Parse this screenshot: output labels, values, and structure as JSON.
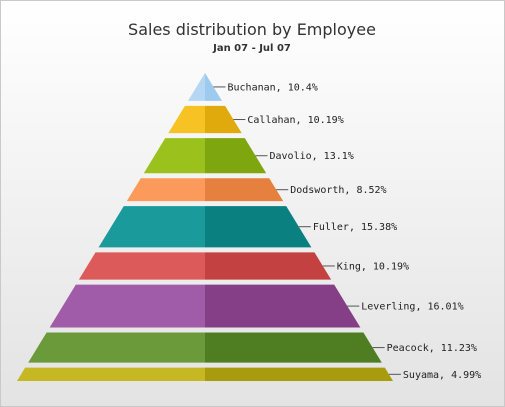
{
  "chart_data": {
    "type": "pyramid",
    "title": "Sales distribution by Employee",
    "subtitle": "Jan 07 - Jul 07",
    "label_separator": ",  ",
    "series": [
      {
        "name": "Buchanan",
        "label": "Buchanan",
        "value": 10.4,
        "value_label": "10.4%",
        "color_left": "#b5d7f3",
        "color_right": "#9ccbef"
      },
      {
        "name": "Callahan",
        "label": "Callahan",
        "value": 10.19,
        "value_label": "10.19%",
        "color_left": "#f6c224",
        "color_right": "#e0a90c"
      },
      {
        "name": "Davolio",
        "label": "Davolio",
        "value": 13.1,
        "value_label": "13.1%",
        "color_left": "#9ac11c",
        "color_right": "#7ea60f"
      },
      {
        "name": "Dodsworth",
        "label": "Dodsworth",
        "value": 8.52,
        "value_label": "8.52%",
        "color_left": "#fb9a5a",
        "color_right": "#e6803e"
      },
      {
        "name": "Fuller",
        "label": "Fuller",
        "value": 15.38,
        "value_label": "15.38%",
        "color_left": "#1a9a9a",
        "color_right": "#0a8080"
      },
      {
        "name": "King",
        "label": "King",
        "value": 10.19,
        "value_label": "10.19%",
        "color_left": "#dd5a5a",
        "color_right": "#c44141"
      },
      {
        "name": "Leverling",
        "label": "Leverling",
        "value": 16.01,
        "value_label": "16.01%",
        "color_left": "#a05ca8",
        "color_right": "#843f86"
      },
      {
        "name": "Peacock",
        "label": "Peacock",
        "value": 11.23,
        "value_label": "11.23%",
        "color_left": "#6b9a3a",
        "color_right": "#4f7e22"
      },
      {
        "name": "Suyama",
        "label": "Suyama",
        "value": 4.99,
        "value_label": "4.99%",
        "color_left": "#c6b823",
        "color_right": "#a89c0e"
      }
    ]
  }
}
